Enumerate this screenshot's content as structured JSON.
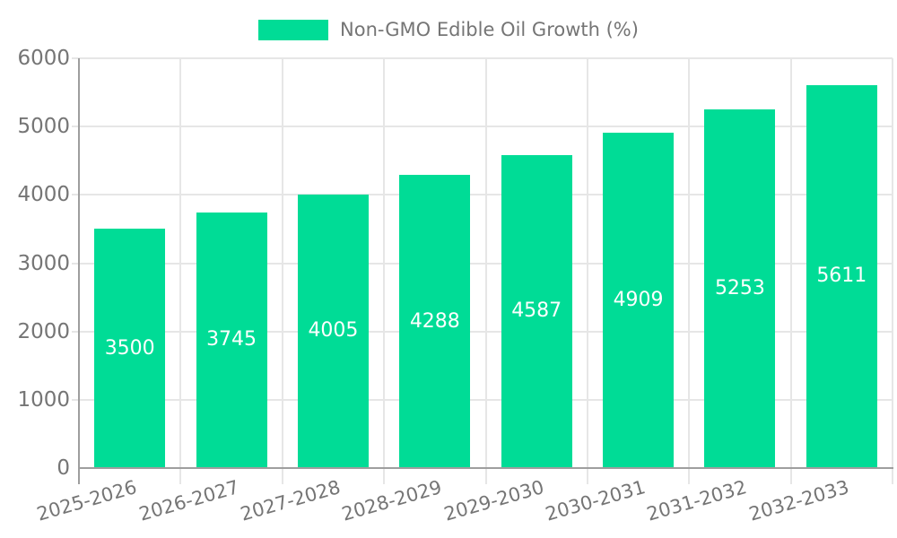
{
  "chart_data": {
    "type": "bar",
    "legend": "Non-GMO Edible Oil Growth (%)",
    "legend_position": "top",
    "categories": [
      "2025-2026",
      "2026-2027",
      "2027-2028",
      "2028-2029",
      "2029-2030",
      "2030-2031",
      "2031-2032",
      "2032-2033"
    ],
    "values": [
      3500,
      3745,
      4005,
      4288,
      4587,
      4909,
      5253,
      5611
    ],
    "value_labels": [
      "3500",
      "3745",
      "4005",
      "4288",
      "4587",
      "4909",
      "5253",
      "5611"
    ],
    "ylim": [
      0,
      6000
    ],
    "yticks": [
      "0",
      "1000",
      "2000",
      "3000",
      "4000",
      "5000",
      "6000"
    ],
    "grid": true,
    "x_label_rotation_deg": -16,
    "colors": {
      "bar": "#00dc96",
      "bar_value_text": "#ffffff",
      "axis_text": "#757575",
      "gridline": "#e6e6e6",
      "axis_line": "#9e9e9e"
    }
  }
}
